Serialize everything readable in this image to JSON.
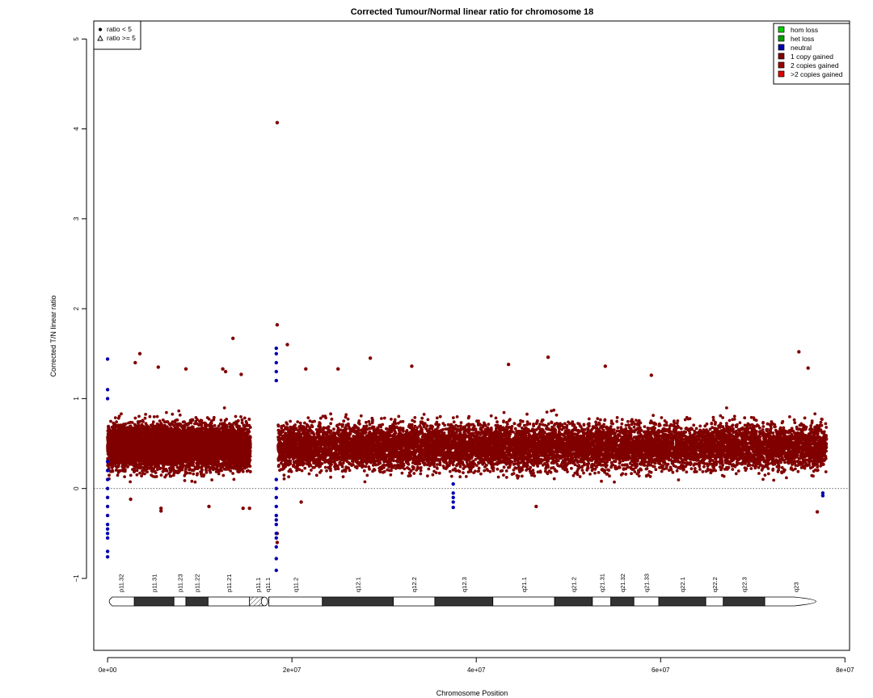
{
  "chart_data": {
    "type": "scatter",
    "title": "Corrected Tumour/Normal linear ratio for chromosome  18",
    "xlabel": "Chromosome Position",
    "ylabel": "Corrected T/N linear ratio",
    "xlim": [
      -1500000,
      80500000
    ],
    "ylim": [
      -1.8,
      5.2
    ],
    "x_ticks": [
      0,
      20000000,
      40000000,
      60000000,
      80000000
    ],
    "x_tick_labels": [
      "0e+00",
      "2e+07",
      "4e+07",
      "6e+07",
      "8e+07"
    ],
    "y_ticks": [
      -1,
      0,
      1,
      2,
      3,
      4,
      5
    ],
    "y_tick_labels": [
      "−1",
      "0",
      "1",
      "2",
      "3",
      "4",
      "5"
    ],
    "reference_line_y": 0,
    "shape_legend": {
      "position": "top-left",
      "items": [
        {
          "label": "ratio < 5",
          "symbol": "filled-circle"
        },
        {
          "label": "ratio >= 5",
          "symbol": "open-triangle"
        }
      ]
    },
    "color_legend": {
      "position": "top-right",
      "items": [
        {
          "label": "hom loss",
          "color": "#00d000"
        },
        {
          "label": "het loss",
          "color": "#00a000"
        },
        {
          "label": "neutral",
          "color": "#0000b0"
        },
        {
          "label": "1 copy gained",
          "color": "#800000"
        },
        {
          "label": "2 copies gained",
          "color": "#a00000"
        },
        {
          "label": ">2 copies gained",
          "color": "#e00000"
        }
      ]
    },
    "series": [
      {
        "name": "1 copy gained",
        "color": "#800000",
        "point_clouds": [
          {
            "x_range": [
              0,
              15500000
            ],
            "y_center": 0.47,
            "y_spread": 0.42
          },
          {
            "x_range": [
              18500000,
              78000000
            ],
            "y_center": 0.47,
            "y_spread": 0.42
          }
        ],
        "outliers": [
          {
            "x": 18400000,
            "y": 4.07
          },
          {
            "x": 18400000,
            "y": 1.82
          },
          {
            "x": 13600000,
            "y": 1.67
          },
          {
            "x": 19500000,
            "y": 1.6
          },
          {
            "x": 75000000,
            "y": 1.52
          },
          {
            "x": 3500000,
            "y": 1.5
          },
          {
            "x": 28500000,
            "y": 1.45
          },
          {
            "x": 47800000,
            "y": 1.46
          },
          {
            "x": 3000000,
            "y": 1.4
          },
          {
            "x": 43500000,
            "y": 1.38
          },
          {
            "x": 33000000,
            "y": 1.36
          },
          {
            "x": 54000000,
            "y": 1.36
          },
          {
            "x": 5500000,
            "y": 1.35
          },
          {
            "x": 8500000,
            "y": 1.33
          },
          {
            "x": 76000000,
            "y": 1.34
          },
          {
            "x": 12500000,
            "y": 1.33
          },
          {
            "x": 21500000,
            "y": 1.33
          },
          {
            "x": 25000000,
            "y": 1.33
          },
          {
            "x": 12800000,
            "y": 1.3
          },
          {
            "x": 59000000,
            "y": 1.26
          },
          {
            "x": 14500000,
            "y": 1.27
          },
          {
            "x": 5800000,
            "y": -0.22
          },
          {
            "x": 5800000,
            "y": -0.25
          },
          {
            "x": 77000000,
            "y": -0.26
          },
          {
            "x": 11000000,
            "y": -0.2
          },
          {
            "x": 15400000,
            "y": -0.22
          },
          {
            "x": 14700000,
            "y": -0.22
          },
          {
            "x": 46500000,
            "y": -0.2
          },
          {
            "x": 21000000,
            "y": -0.15
          },
          {
            "x": 2500000,
            "y": -0.12
          },
          {
            "x": 18400000,
            "y": -0.6
          },
          {
            "x": 18400000,
            "y": -0.5
          }
        ]
      },
      {
        "name": "neutral",
        "color": "#0000b0",
        "points": [
          {
            "x": 0,
            "y": 1.44
          },
          {
            "x": 0,
            "y": 1.1
          },
          {
            "x": 0,
            "y": 1.0
          },
          {
            "x": 0,
            "y": 0.3
          },
          {
            "x": 0,
            "y": 0.2
          },
          {
            "x": 0,
            "y": 0.1
          },
          {
            "x": 0,
            "y": 0.0
          },
          {
            "x": 0,
            "y": -0.1
          },
          {
            "x": 0,
            "y": -0.2
          },
          {
            "x": 0,
            "y": -0.3
          },
          {
            "x": 0,
            "y": -0.4
          },
          {
            "x": 0,
            "y": -0.45
          },
          {
            "x": 0,
            "y": -0.5
          },
          {
            "x": 0,
            "y": -0.55
          },
          {
            "x": 0,
            "y": -0.7
          },
          {
            "x": 0,
            "y": -0.76
          },
          {
            "x": 18300000,
            "y": 1.56
          },
          {
            "x": 18300000,
            "y": 1.5
          },
          {
            "x": 18300000,
            "y": 1.4
          },
          {
            "x": 18300000,
            "y": 1.3
          },
          {
            "x": 18300000,
            "y": 1.2
          },
          {
            "x": 18300000,
            "y": 0.1
          },
          {
            "x": 18300000,
            "y": 0.0
          },
          {
            "x": 18300000,
            "y": -0.1
          },
          {
            "x": 18300000,
            "y": -0.2
          },
          {
            "x": 18300000,
            "y": -0.3
          },
          {
            "x": 18300000,
            "y": -0.35
          },
          {
            "x": 18300000,
            "y": -0.4
          },
          {
            "x": 18300000,
            "y": -0.5
          },
          {
            "x": 18300000,
            "y": -0.55
          },
          {
            "x": 18300000,
            "y": -0.65
          },
          {
            "x": 18300000,
            "y": -0.78
          },
          {
            "x": 18300000,
            "y": -0.91
          },
          {
            "x": 37500000,
            "y": 0.05
          },
          {
            "x": 37500000,
            "y": -0.05
          },
          {
            "x": 37500000,
            "y": -0.1
          },
          {
            "x": 37500000,
            "y": -0.15
          },
          {
            "x": 37500000,
            "y": -0.21
          },
          {
            "x": 77600000,
            "y": -0.05
          },
          {
            "x": 77600000,
            "y": -0.08
          }
        ]
      }
    ],
    "ideogram": {
      "bands": [
        {
          "name": "p11.32",
          "start": 0,
          "end": 2900000,
          "stain": "white",
          "shape": "left-end"
        },
        {
          "name": "p11.31",
          "start": 2900000,
          "end": 7200000,
          "stain": "dark"
        },
        {
          "name": "p11.23",
          "start": 7200000,
          "end": 8500000,
          "stain": "white"
        },
        {
          "name": "p11.22",
          "start": 8500000,
          "end": 10900000,
          "stain": "dark"
        },
        {
          "name": "p11.21",
          "start": 10900000,
          "end": 15400000,
          "stain": "white"
        },
        {
          "name": "p11.1",
          "start": 15400000,
          "end": 17200000,
          "stain": "hatched"
        },
        {
          "name": "q11.1",
          "start": 17200000,
          "end": 17500000,
          "stain": "hatched"
        },
        {
          "name": "q11.2",
          "start": 17500000,
          "end": 23300000,
          "stain": "white"
        },
        {
          "name": "q12.1",
          "start": 23300000,
          "end": 31000000,
          "stain": "dark"
        },
        {
          "name": "q12.2",
          "start": 31000000,
          "end": 35500000,
          "stain": "white"
        },
        {
          "name": "q12.3",
          "start": 35500000,
          "end": 41800000,
          "stain": "dark"
        },
        {
          "name": "q21.1",
          "start": 41800000,
          "end": 48500000,
          "stain": "white"
        },
        {
          "name": "q21.2",
          "start": 48500000,
          "end": 52600000,
          "stain": "dark"
        },
        {
          "name": "q21.31",
          "start": 52600000,
          "end": 54600000,
          "stain": "white"
        },
        {
          "name": "q21.32",
          "start": 54600000,
          "end": 57100000,
          "stain": "dark"
        },
        {
          "name": "q21.33",
          "start": 57100000,
          "end": 59800000,
          "stain": "white"
        },
        {
          "name": "q22.1",
          "start": 59800000,
          "end": 64900000,
          "stain": "dark"
        },
        {
          "name": "q22.2",
          "start": 64900000,
          "end": 66800000,
          "stain": "white"
        },
        {
          "name": "q22.3",
          "start": 66800000,
          "end": 71300000,
          "stain": "dark"
        },
        {
          "name": "q23",
          "start": 71300000,
          "end": 78000000,
          "stain": "white",
          "shape": "right-end"
        }
      ],
      "centromere": 17200000
    }
  }
}
